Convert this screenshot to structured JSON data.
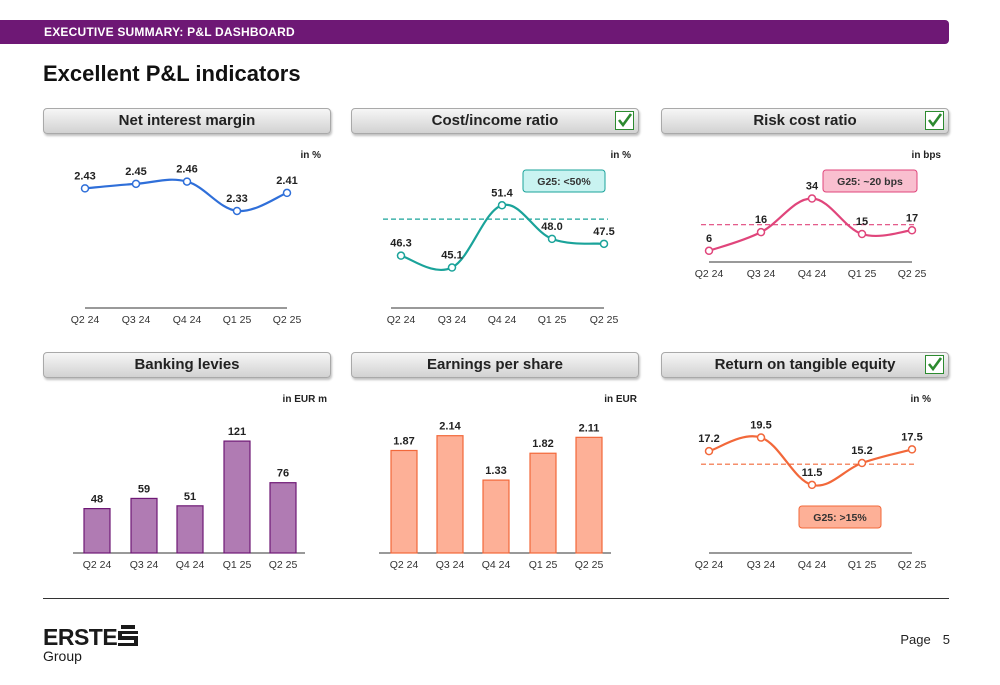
{
  "header": {
    "banner": "EXECUTIVE SUMMARY: P&L DASHBOARD",
    "title": "Excellent P&L indicators"
  },
  "footer": {
    "logo_main": "ERSTE",
    "logo_sub": "Group",
    "page_label": "Page",
    "page_number": "5"
  },
  "colors": {
    "banner": "#6e1875",
    "blue": "#2f6fd9",
    "teal": "#1aa39a",
    "pink": "#e0457b",
    "purple": "#b07bb3",
    "salmon": "#fdb097",
    "orange": "#f2683a"
  },
  "chart_data": [
    {
      "id": "nim",
      "type": "line",
      "title": "Net interest margin",
      "unit": "in %",
      "categories": [
        "Q2 24",
        "Q3 24",
        "Q4 24",
        "Q1 25",
        "Q2 25"
      ],
      "values": [
        2.43,
        2.45,
        2.46,
        2.33,
        2.41
      ],
      "labels": [
        "2.43",
        "2.45",
        "2.46",
        "2.33",
        "2.41"
      ],
      "ylim": [
        1.9,
        2.6
      ],
      "color": "#2f6fd9",
      "check": false
    },
    {
      "id": "cir",
      "type": "line",
      "title": "Cost/income ratio",
      "unit": "in %",
      "categories": [
        "Q2 24",
        "Q3 24",
        "Q4 24",
        "Q1 25",
        "Q2 25"
      ],
      "values": [
        46.3,
        45.1,
        51.4,
        48.0,
        47.5
      ],
      "labels": [
        "46.3",
        "45.1",
        "51.4",
        "48.0",
        "47.5"
      ],
      "ylim": [
        41,
        57
      ],
      "target": 50,
      "target_label": "G25: <50%",
      "color": "#1aa39a",
      "target_fill": "#c9f3f1",
      "target_stroke": "#1aa39a",
      "check": true
    },
    {
      "id": "rcr",
      "type": "line",
      "title": "Risk cost ratio",
      "unit": "in bps",
      "categories": [
        "Q2 24",
        "Q3 24",
        "Q4 24",
        "Q1 25",
        "Q2 25"
      ],
      "values": [
        6,
        16,
        34,
        15,
        17
      ],
      "labels": [
        "6",
        "16",
        "34",
        "15",
        "17"
      ],
      "ylim": [
        0,
        60
      ],
      "target": 20,
      "target_label": "G25: ~20 bps",
      "color": "#e0457b",
      "target_fill": "#f9bfcf",
      "target_stroke": "#e0457b",
      "check": true
    },
    {
      "id": "bl",
      "type": "bar",
      "title": "Banking levies",
      "unit": "in EUR m",
      "categories": [
        "Q2 24",
        "Q3 24",
        "Q4 24",
        "Q1 25",
        "Q2 25"
      ],
      "values": [
        48,
        59,
        51,
        121,
        76
      ],
      "labels": [
        "48",
        "59",
        "51",
        "121",
        "76"
      ],
      "ylim": [
        0,
        160
      ],
      "color": "#b07bb3",
      "stroke": "#6e1875",
      "check": false
    },
    {
      "id": "eps",
      "type": "bar",
      "title": "Earnings per share",
      "unit": "in EUR",
      "categories": [
        "Q2 24",
        "Q3 24",
        "Q4 24",
        "Q1 25",
        "Q2 25"
      ],
      "values": [
        1.87,
        2.14,
        1.33,
        1.82,
        2.11
      ],
      "labels": [
        "1.87",
        "2.14",
        "1.33",
        "1.82",
        "2.11"
      ],
      "ylim": [
        0,
        2.7
      ],
      "color": "#fdb097",
      "stroke": "#f2683a",
      "check": false
    },
    {
      "id": "rote",
      "type": "line",
      "title": "Return on tangible equity",
      "unit": "in %",
      "categories": [
        "Q2 24",
        "Q3 24",
        "Q4 24",
        "Q1 25",
        "Q2 25"
      ],
      "values": [
        17.2,
        19.5,
        11.5,
        15.2,
        17.5
      ],
      "labels": [
        "17.2",
        "19.5",
        "11.5",
        "15.2",
        "17.5"
      ],
      "ylim": [
        0,
        25
      ],
      "target": 15,
      "target_label": "G25:  >15%",
      "color": "#f2683a",
      "target_fill": "#fdb097",
      "target_stroke": "#f2683a",
      "check": true
    }
  ]
}
